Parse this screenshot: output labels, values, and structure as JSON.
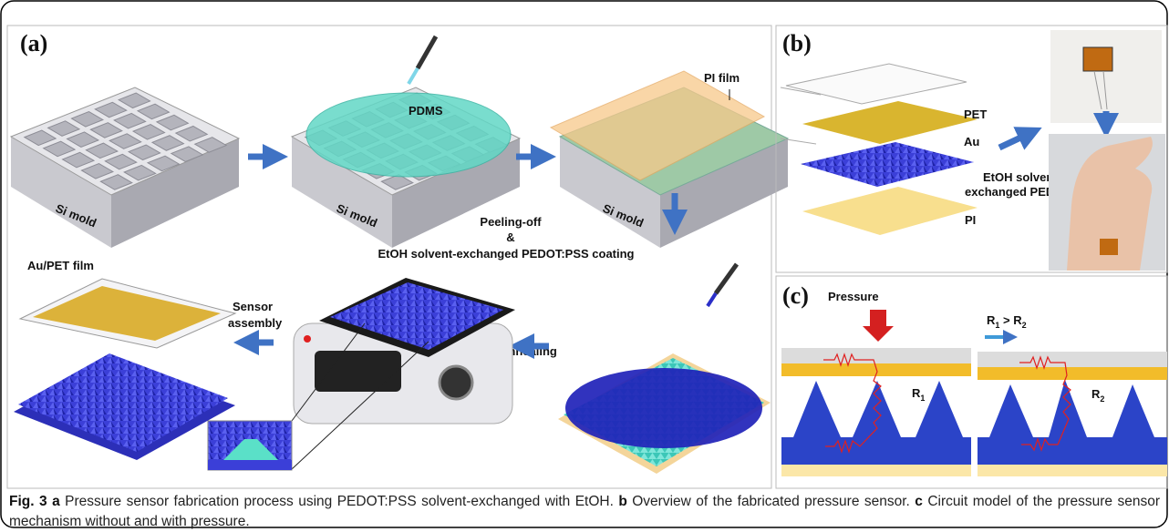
{
  "panel_a": {
    "label": "(a)",
    "pi_film": "PI film",
    "pdms": "PDMS",
    "si_mold_1": "Si mold",
    "si_mold_2": "Si mold",
    "si_mold_3": "Si mold",
    "peeling_off": "Peeling-off",
    "ampersand": "&",
    "coating": "EtOH solvent-exchanged PEDOT:PSS coating",
    "au_pet_film": "Au/PET film",
    "sensor_assembly": [
      "Sensor",
      "assembly"
    ],
    "annealing": "Annealing"
  },
  "panel_b": {
    "label": "(b)",
    "layers": [
      "PET",
      "Au",
      "EtOH solvent-",
      "exchanged PEDOT:PSS",
      "PI"
    ]
  },
  "panel_c": {
    "label": "(c)",
    "pressure": "Pressure",
    "comparison": {
      "r_left": "R",
      "sub_left": "1",
      "operator": " > ",
      "r_right": "R",
      "sub_right": "2"
    },
    "left_resistor": {
      "r": "R",
      "sub": "1"
    },
    "right_resistor": {
      "r": "R",
      "sub": "2"
    }
  },
  "caption": {
    "figure": "Fig. 3",
    "a_label": "a",
    "a_text": " Pressure sensor fabrication process using PEDOT:PSS solvent-exchanged with EtOH. ",
    "b_label": "b",
    "b_text": " Overview of the fabricated pressure sensor. ",
    "c_label": "c",
    "c_text": " Circuit model of the pressure sensor mechanism without and with pressure."
  }
}
